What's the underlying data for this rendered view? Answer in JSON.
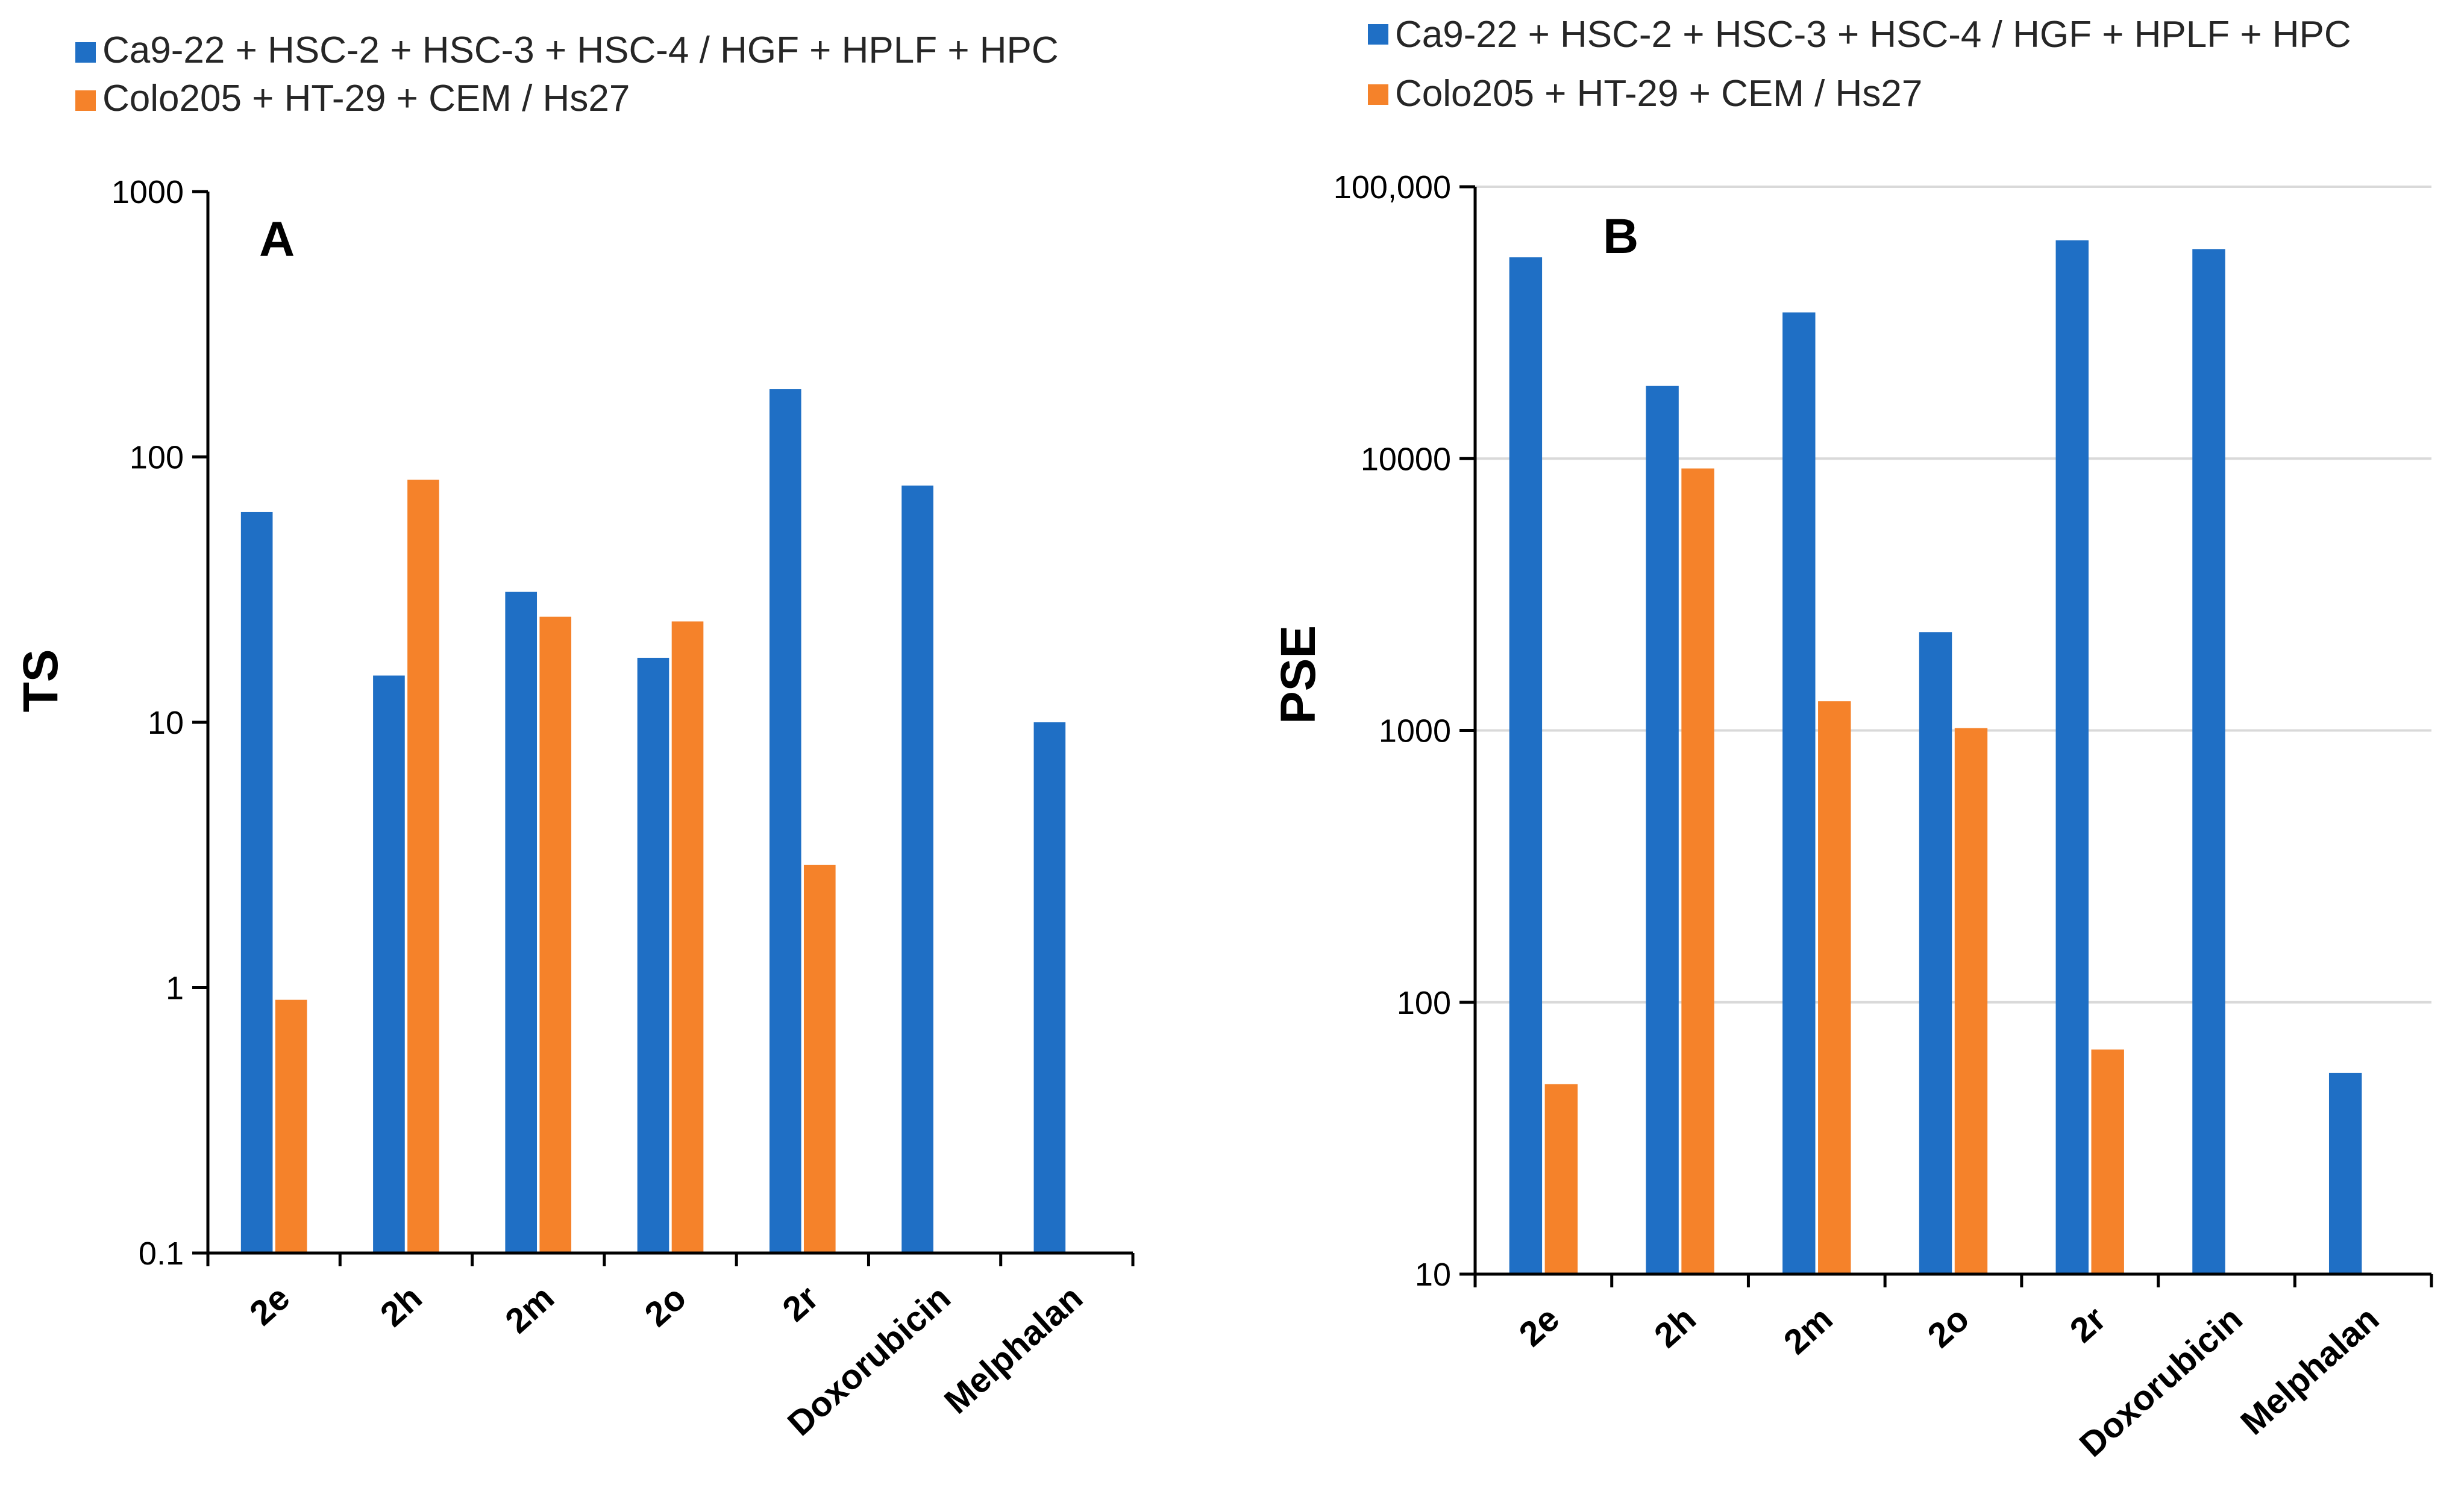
{
  "colors": {
    "blue": "#1F6FC5",
    "orange": "#F5822A",
    "axis": "#000000",
    "grid": "#D9D9D9"
  },
  "chart_data": [
    {
      "type": "bar",
      "panel": "A",
      "ylabel": "TS",
      "xlabel": "",
      "yscale": "log",
      "ylim": [
        0.1,
        1000
      ],
      "grid": false,
      "legend_position": "top-left",
      "ytick_values": [
        0.1,
        1,
        10,
        100,
        1000
      ],
      "ytick_labels": [
        "0.1",
        "1",
        "10",
        "100",
        "1000"
      ],
      "categories": [
        "2e",
        "2h",
        "2m",
        "2o",
        "2r",
        "Doxorubicin",
        "Melphalan"
      ],
      "series": [
        {
          "name": "Ca9-22 + HSC-2 + HSC-3 + HSC-4 / HGF + HPLF + HPC",
          "color": "#1F6FC5",
          "values": [
            62,
            15,
            31,
            17.5,
            180,
            78,
            10
          ]
        },
        {
          "name": "Colo205 + HT-29  + CEM / Hs27",
          "color": "#F5822A",
          "values": [
            0.9,
            82,
            25,
            24,
            2.9,
            null,
            null
          ]
        }
      ]
    },
    {
      "type": "bar",
      "panel": "B",
      "ylabel": "PSE",
      "xlabel": "",
      "yscale": "log",
      "ylim": [
        10,
        100000
      ],
      "grid": true,
      "legend_position": "top-left",
      "ytick_values": [
        10,
        100,
        1000,
        10000,
        100000
      ],
      "ytick_labels": [
        "10",
        "100",
        "1000",
        "10000",
        "100,000"
      ],
      "categories": [
        "2e",
        "2h",
        "2m",
        "2o",
        "2r",
        "Doxorubicin",
        "Melphalan"
      ],
      "series": [
        {
          "name": "Ca9-22 + HSC-2 + HSC-3 + HSC-4 / HGF + HPLF + HPC",
          "color": "#1F6FC5",
          "values": [
            55000,
            18500,
            34500,
            2300,
            63500,
            59000,
            55
          ]
        },
        {
          "name": "Colo205 + HT-29  + CEM / Hs27",
          "color": "#F5822A",
          "values": [
            50,
            9200,
            1280,
            1020,
            67,
            null,
            null
          ]
        }
      ]
    }
  ]
}
